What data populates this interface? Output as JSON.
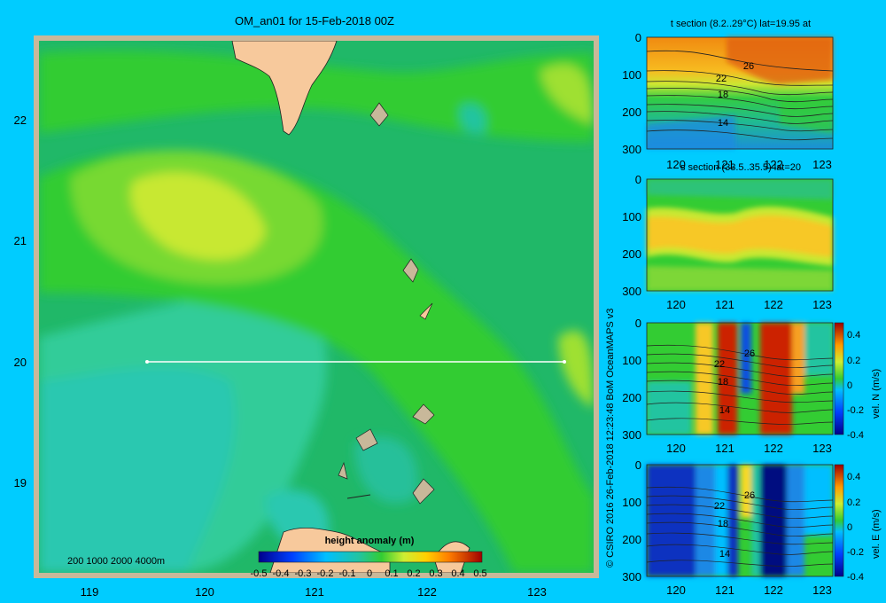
{
  "colors": {
    "page_bg": "#00ccff",
    "map_frame": "#c8b89a",
    "land": "#f7c99c",
    "transect": "#ffffff"
  },
  "main_map": {
    "title": "OM_an01 for 15-Feb-2018 00Z",
    "x_ticks": [
      "119",
      "120",
      "121",
      "122",
      "123"
    ],
    "y_ticks": [
      "22",
      "21",
      "20",
      "19"
    ],
    "depth_legend": "200  1000  2000  4000m",
    "colorbar_title": "height anomaly (m)",
    "colorbar_labels": [
      "-0.5",
      "-0.4",
      "-0.3",
      "-0.2",
      "-0.1",
      "0",
      "0.1",
      "0.2",
      "0.3",
      "0.4",
      "0.5"
    ]
  },
  "credit": "© CSIRO 2016   26-Feb-2018 12:23:48 BoM OceanMAPS v3",
  "panels": [
    {
      "title": "t section (8.2..29°C) lat=19.95 at",
      "y_ticks": [
        "0",
        "100",
        "200",
        "300"
      ],
      "x_ticks": [
        "120",
        "121",
        "122",
        "123"
      ],
      "contour_labels": [
        "26",
        "22",
        "18",
        "14"
      ]
    },
    {
      "title": "s section (33.5..35.5) lat=20",
      "y_ticks": [
        "0",
        "100",
        "200",
        "300"
      ],
      "x_ticks": [
        "120",
        "121",
        "122",
        "123"
      ],
      "contour_labels": []
    },
    {
      "title": "",
      "y_ticks": [
        "0",
        "100",
        "200",
        "300"
      ],
      "x_ticks": [
        "120",
        "121",
        "122",
        "123"
      ],
      "contour_labels": [
        "26",
        "22",
        "18",
        "14"
      ],
      "colorbar_labels": [
        "0.4",
        "0.2",
        "0",
        "-0.2",
        "-0.4"
      ],
      "colorbar_title": "vel. N (m/s)"
    },
    {
      "title": "",
      "y_ticks": [
        "0",
        "100",
        "200",
        "300"
      ],
      "x_ticks": [
        "120",
        "121",
        "122",
        "123"
      ],
      "contour_labels": [
        "26",
        "22",
        "18",
        "14"
      ],
      "colorbar_labels": [
        "0.4",
        "0.2",
        "0",
        "-0.2",
        "-0.4"
      ],
      "colorbar_title": "vel. E (m/s)"
    }
  ],
  "chart_data": [
    {
      "type": "heatmap",
      "title": "OM_an01 for 15-Feb-2018 00Z",
      "variable": "height anomaly (m)",
      "xlim": [
        118.5,
        123.5
      ],
      "ylim": [
        18.3,
        22.7
      ],
      "clim": [
        -0.5,
        0.5
      ],
      "transect": {
        "lat": 20,
        "lon_start": 119.5,
        "lon_end": 123.2
      },
      "approx_field": [
        {
          "region": "NW near 119.5-120.5E, 21.2-21.8N",
          "value": 0.15
        },
        {
          "region": "general west and north",
          "value": 0.05
        },
        {
          "region": "SW near 118.5-120E, 18.5-20N",
          "value": -0.02
        },
        {
          "region": "east near 122-123E",
          "value": 0.0
        }
      ]
    },
    {
      "type": "heatmap",
      "title": "t section (8.2..29°C) lat=19.95 at",
      "xlim": [
        119.6,
        123.2
      ],
      "ylim": [
        300,
        0
      ],
      "contour_levels_labeled": [
        26,
        22,
        18,
        14
      ]
    },
    {
      "type": "heatmap",
      "title": "s section (33.5..35.5) lat=20",
      "xlim": [
        119.6,
        123.2
      ],
      "ylim": [
        300,
        0
      ]
    },
    {
      "type": "heatmap",
      "variable": "vel. N (m/s)",
      "xlim": [
        119.6,
        123.2
      ],
      "ylim": [
        300,
        0
      ],
      "clim": [
        -0.4,
        0.4
      ],
      "features": [
        {
          "lon": 121.0,
          "value": 0.4
        },
        {
          "lon": 121.4,
          "value": -0.4
        },
        {
          "lon": 122.0,
          "value": 0.4
        }
      ]
    },
    {
      "type": "heatmap",
      "variable": "vel. E (m/s)",
      "xlim": [
        119.6,
        123.2
      ],
      "ylim": [
        300,
        0
      ],
      "clim": [
        -0.4,
        0.4
      ],
      "features": [
        {
          "lon": 120.0,
          "value": -0.4
        },
        {
          "lon": 121.0,
          "value": 0.0
        },
        {
          "lon": 122.0,
          "value": -0.4
        }
      ]
    }
  ]
}
